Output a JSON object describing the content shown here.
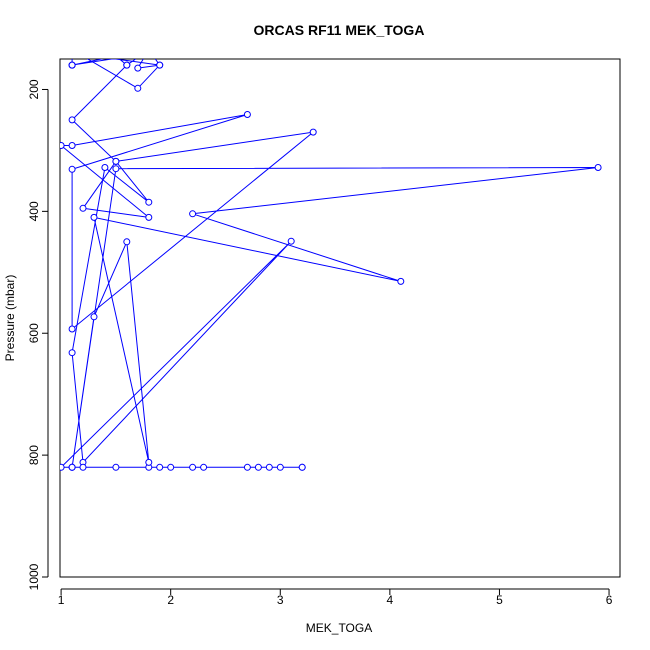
{
  "chart_data": {
    "type": "scatter",
    "title": "ORCAS RF11 MEK_TOGA",
    "xlabel": "MEK_TOGA",
    "ylabel": "Pressure (mbar)",
    "xlim": [
      0.99,
      6.1
    ],
    "ylim": [
      1000,
      150
    ],
    "y_reversed": true,
    "x_ticks": [
      1,
      2,
      3,
      4,
      5,
      6
    ],
    "y_ticks": [
      200,
      400,
      600,
      800,
      1000
    ],
    "x_tick_labels": [
      "1",
      "2",
      "3",
      "4",
      "5",
      "6"
    ],
    "y_tick_labels": [
      "200",
      "400",
      "600",
      "800",
      "1000"
    ],
    "grid": false,
    "legend": "none",
    "series_color": "#0000ff",
    "series": [
      {
        "x": [
          1.1,
          1.1,
          1.5,
          1.1,
          1.9,
          1.7,
          1.8,
          1.6,
          1.5,
          1.3,
          2.0,
          2.0,
          1.1,
          1.1,
          1.1,
          1.7,
          1.9,
          1.8,
          1.5,
          2.0,
          1.8,
          1.6,
          1.1,
          1.5,
          1.2,
          1.8,
          1.0,
          1.1,
          2.7,
          1.1,
          1.1,
          3.3,
          1.5,
          1.8,
          1.4,
          1.1,
          1.2,
          3.1,
          1.0,
          1.1,
          1.2,
          1.8,
          1.5,
          1.9,
          2.0,
          2.2,
          2.3,
          2.7,
          2.8,
          2.9,
          3.0,
          3.2,
          3.2,
          1.1,
          1.3,
          1.6,
          1.8,
          1.3,
          4.1,
          2.2,
          5.9,
          1.5,
          1.1
        ],
        "y": [
          160,
          160,
          145,
          140,
          160,
          165,
          135,
          160,
          145,
          140,
          140,
          135,
          160,
          140,
          135,
          198,
          160,
          135,
          140,
          140,
          135,
          160,
          250,
          318,
          395,
          410,
          292,
          292,
          241,
          331,
          593,
          270,
          318,
          385,
          328,
          632,
          812,
          449,
          820,
          820,
          820,
          820,
          820,
          820,
          820,
          820,
          820,
          820,
          820,
          820,
          820,
          820,
          820,
          820,
          573,
          450,
          812,
          410,
          515,
          404,
          328,
          330,
          820
        ]
      }
    ]
  }
}
